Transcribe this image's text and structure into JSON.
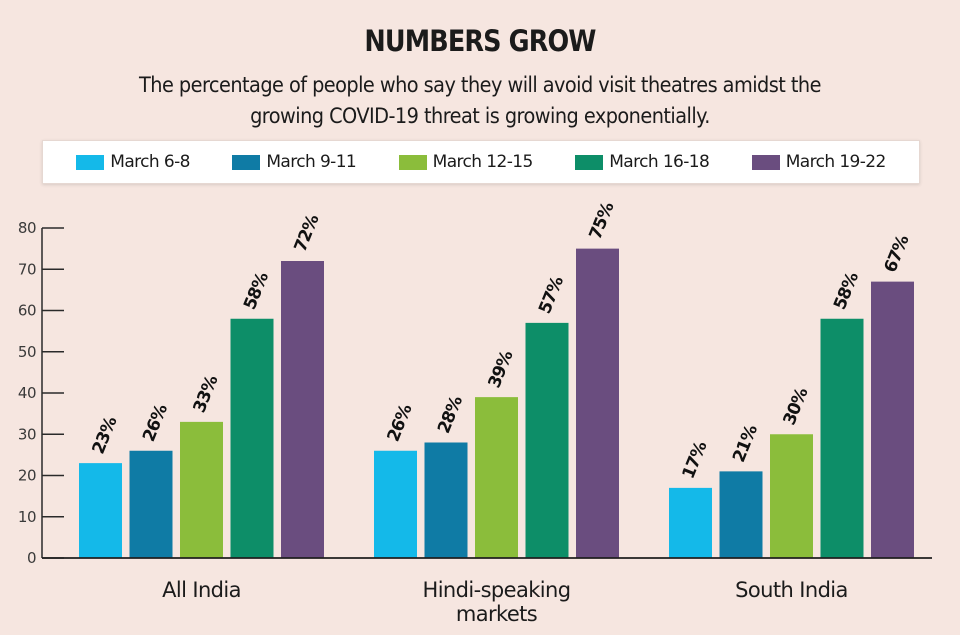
{
  "header": {
    "title": "NUMBERS GROW",
    "subtitle_line1": "The percentage of people who say they will avoid visit theatres amidst the",
    "subtitle_line2": "growing COVID-19 threat is growing exponentially."
  },
  "chart_data": {
    "type": "bar",
    "title": "NUMBERS GROW",
    "subtitle": "The percentage of people who say they will avoid visit theatres amidst the growing COVID-19 threat is growing exponentially.",
    "xlabel": "",
    "ylabel": "",
    "ylim": [
      0,
      80
    ],
    "yticks": [
      0,
      10,
      20,
      30,
      40,
      50,
      60,
      70,
      80
    ],
    "grid": false,
    "legend_position": "top",
    "categories": [
      [
        "All India"
      ],
      [
        "Hindi-speaking",
        "markets"
      ],
      [
        "South India"
      ]
    ],
    "category_names": [
      "All India",
      "Hindi-speaking markets",
      "South India"
    ],
    "series": [
      {
        "name": "March 6-8",
        "color": "#14b9e9",
        "values": [
          23,
          26,
          17
        ]
      },
      {
        "name": "March 9-11",
        "color": "#0f7ba5",
        "values": [
          26,
          28,
          21
        ]
      },
      {
        "name": "March 12-15",
        "color": "#8bbd3b",
        "values": [
          33,
          39,
          30
        ]
      },
      {
        "name": "March 16-18",
        "color": "#0d8e68",
        "values": [
          58,
          57,
          58
        ]
      },
      {
        "name": "March 19-22",
        "color": "#6a4d7f",
        "values": [
          72,
          75,
          67
        ]
      }
    ],
    "value_suffix": "%"
  }
}
